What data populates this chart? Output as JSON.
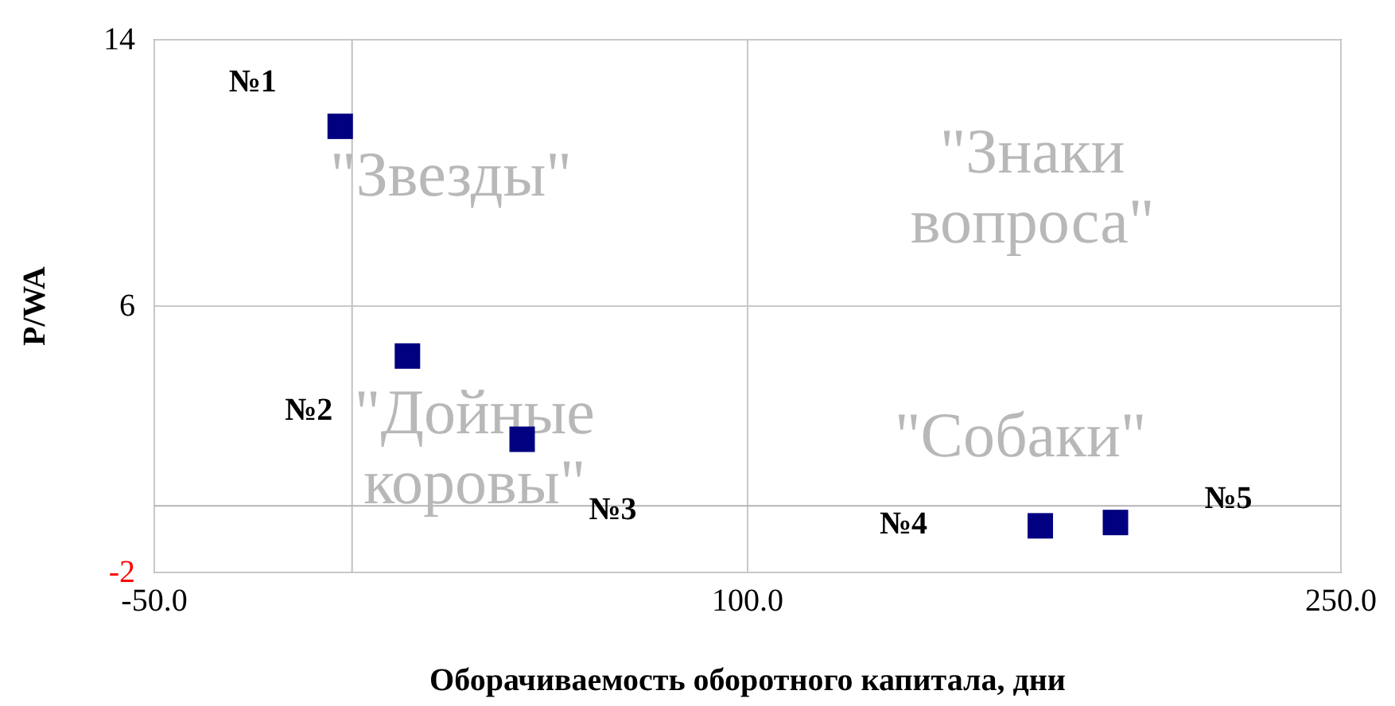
{
  "chart_data": {
    "type": "scatter",
    "xlabel": "Оборачиваемость оборотного капитала, дни",
    "ylabel": "P/WA",
    "x": [
      -3,
      14,
      43,
      174,
      193
    ],
    "series": [
      {
        "color": "#000080",
        "values": [
          11.4,
          4.5,
          2.0,
          -0.6,
          -0.5
        ]
      }
    ],
    "marker": "square",
    "grid": true,
    "xlim": [
      -50,
      250
    ],
    "xticks": [
      {
        "value": -50,
        "label": "-50.0"
      },
      {
        "value": 100,
        "label": "100.0"
      },
      {
        "value": 250,
        "label": "250.0"
      }
    ],
    "ylim": [
      -2,
      14
    ],
    "yticks": [
      -2,
      6,
      14
    ],
    "ref_lines": [
      {
        "axis": "x",
        "value": 0,
        "color": "#c0c0c0"
      },
      {
        "axis": "y",
        "value": 0,
        "color": "#b4b4b4"
      }
    ],
    "annotations": [
      "№1",
      "№2",
      "№3",
      "№4",
      "№5",
      "\"Звезды\"",
      "\"Знаки\nвопроса\"",
      "\"Дойные\nкоровы\"",
      "\"Собаки\""
    ]
  }
}
